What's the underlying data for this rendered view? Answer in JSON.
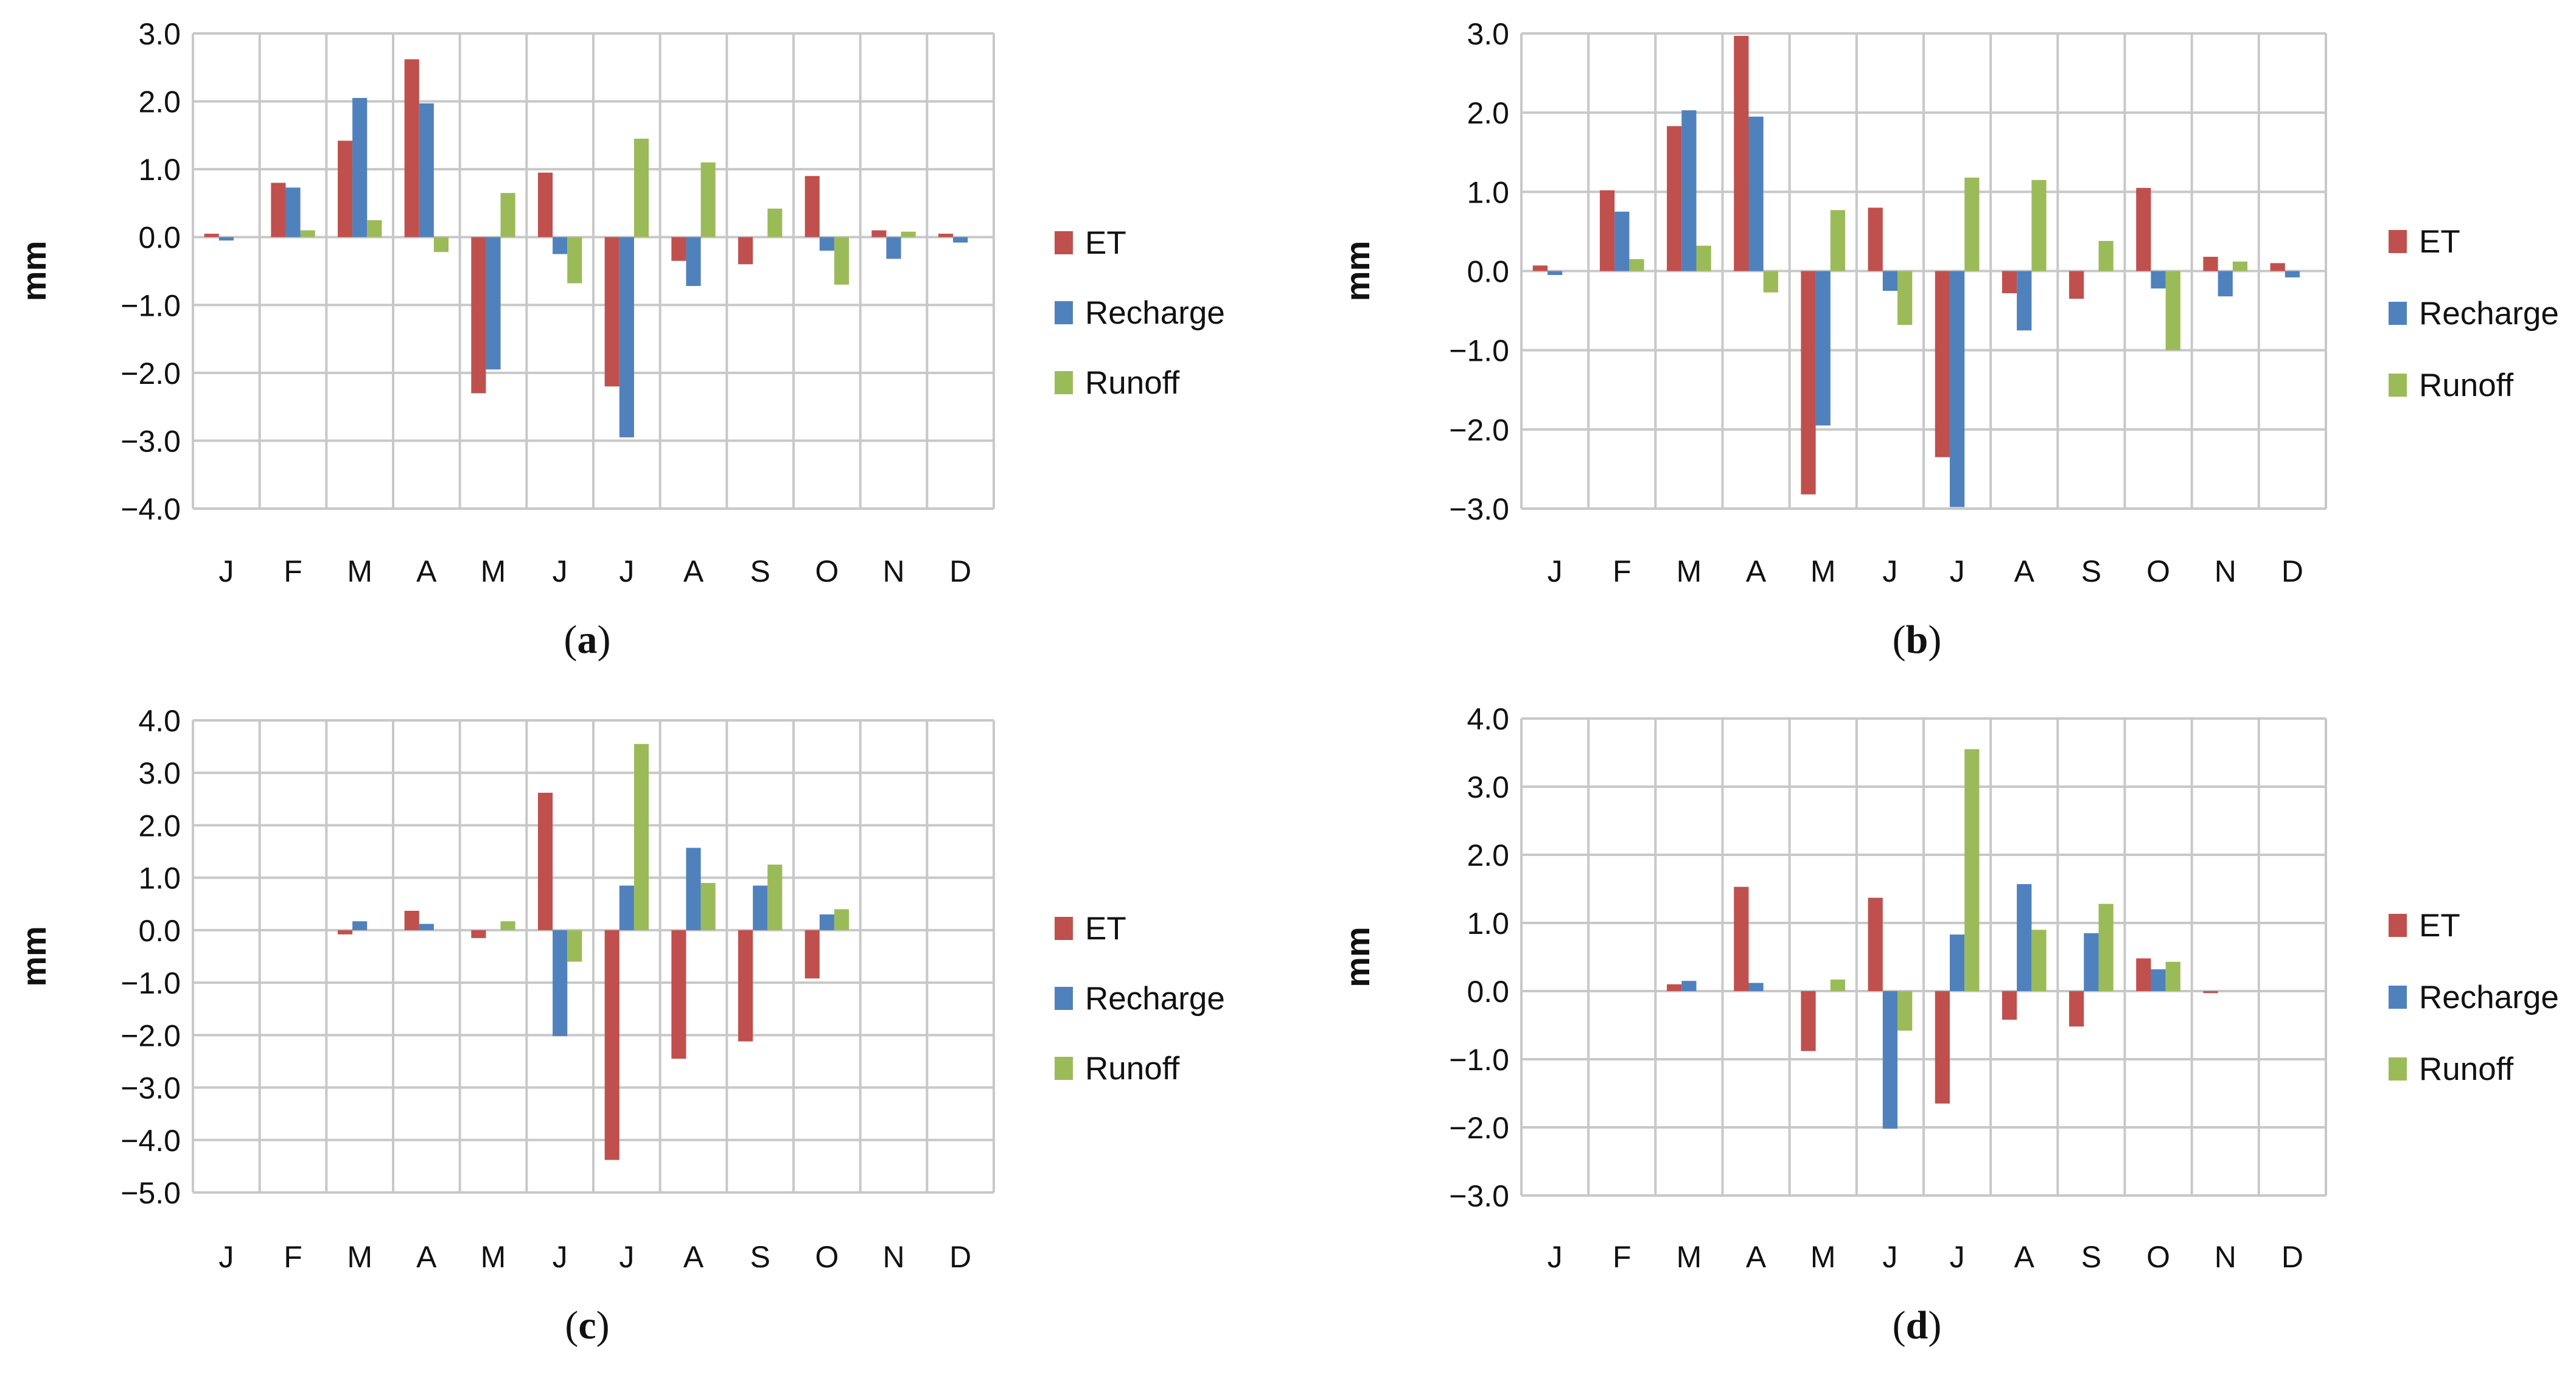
{
  "figure": {
    "panel_labels": [
      {
        "open": "(",
        "letter": "a",
        "close": ")"
      },
      {
        "open": "(",
        "letter": "b",
        "close": ")"
      },
      {
        "open": "(",
        "letter": "c",
        "close": ")"
      },
      {
        "open": "(",
        "letter": "d",
        "close": ")"
      }
    ]
  },
  "colors": {
    "ET": "#C0504D",
    "Recharge": "#4F81BD",
    "Runoff": "#9BBB59",
    "grid": "#C8C8C8"
  },
  "chart_data": [
    {
      "type": "bar",
      "title": "",
      "xlabel": "",
      "ylabel": "mm",
      "ylim": [
        -4.0,
        3.0
      ],
      "yticks": [
        "3.0",
        "2.0",
        "1.0",
        "0.0",
        "−1.0",
        "−2.0",
        "−3.0",
        "−4.0"
      ],
      "grid": true,
      "legend_position": "right",
      "categories": [
        "J",
        "F",
        "M",
        "A",
        "M",
        "J",
        "J",
        "A",
        "S",
        "O",
        "N",
        "D"
      ],
      "series": [
        {
          "name": "ET",
          "values": [
            0.05,
            0.8,
            1.42,
            2.62,
            -2.3,
            0.95,
            -2.2,
            -0.35,
            -0.4,
            0.9,
            0.1,
            0.05
          ]
        },
        {
          "name": "Recharge",
          "values": [
            -0.05,
            0.73,
            2.05,
            1.97,
            -1.95,
            -0.25,
            -2.95,
            -0.72,
            0.0,
            -0.2,
            -0.32,
            -0.08
          ]
        },
        {
          "name": "Runoff",
          "values": [
            0.0,
            0.1,
            0.25,
            -0.22,
            0.65,
            -0.68,
            1.45,
            1.1,
            0.42,
            -0.7,
            0.08,
            0.0
          ]
        }
      ]
    },
    {
      "type": "bar",
      "title": "",
      "xlabel": "",
      "ylabel": "mm",
      "ylim": [
        -3.0,
        3.0
      ],
      "yticks": [
        "3.0",
        "2.0",
        "1.0",
        "0.0",
        "−1.0",
        "−2.0",
        "−3.0"
      ],
      "grid": true,
      "legend_position": "right",
      "categories": [
        "J",
        "F",
        "M",
        "A",
        "M",
        "J",
        "J",
        "A",
        "S",
        "O",
        "N",
        "D"
      ],
      "series": [
        {
          "name": "ET",
          "values": [
            0.07,
            1.02,
            1.83,
            2.97,
            -2.82,
            0.8,
            -2.35,
            -0.28,
            -0.35,
            1.05,
            0.18,
            0.1
          ]
        },
        {
          "name": "Recharge",
          "values": [
            -0.05,
            0.75,
            2.03,
            1.95,
            -1.95,
            -0.25,
            -2.98,
            -0.75,
            0.0,
            -0.22,
            -0.32,
            -0.08
          ]
        },
        {
          "name": "Runoff",
          "values": [
            0.0,
            0.15,
            0.32,
            -0.27,
            0.77,
            -0.68,
            1.18,
            1.15,
            0.38,
            -1.0,
            0.12,
            0.0
          ]
        }
      ]
    },
    {
      "type": "bar",
      "title": "",
      "xlabel": "",
      "ylabel": "mm",
      "ylim": [
        -5.0,
        4.0
      ],
      "yticks": [
        "4.0",
        "3.0",
        "2.0",
        "1.0",
        "0.0",
        "−1.0",
        "−2.0",
        "−3.0",
        "−4.0",
        "−5.0"
      ],
      "grid": true,
      "legend_position": "right",
      "categories": [
        "J",
        "F",
        "M",
        "A",
        "M",
        "J",
        "J",
        "A",
        "S",
        "O",
        "N",
        "D"
      ],
      "series": [
        {
          "name": "ET",
          "values": [
            0.0,
            0.0,
            -0.08,
            0.37,
            -0.15,
            2.62,
            -4.38,
            -2.45,
            -2.12,
            -0.92,
            0.0,
            0.0
          ]
        },
        {
          "name": "Recharge",
          "values": [
            0.0,
            0.0,
            0.17,
            0.12,
            0.0,
            -2.02,
            0.85,
            1.57,
            0.85,
            0.3,
            0.0,
            0.0
          ]
        },
        {
          "name": "Runoff",
          "values": [
            0.0,
            0.0,
            0.0,
            0.0,
            0.17,
            -0.6,
            3.55,
            0.9,
            1.25,
            0.4,
            0.0,
            0.0
          ]
        }
      ]
    },
    {
      "type": "bar",
      "title": "",
      "xlabel": "",
      "ylabel": "mm",
      "ylim": [
        -3.0,
        4.0
      ],
      "yticks": [
        "4.0",
        "3.0",
        "2.0",
        "1.0",
        "0.0",
        "−1.0",
        "−2.0",
        "−3.0"
      ],
      "grid": true,
      "legend_position": "right",
      "categories": [
        "J",
        "F",
        "M",
        "A",
        "M",
        "J",
        "J",
        "A",
        "S",
        "O",
        "N",
        "D"
      ],
      "series": [
        {
          "name": "ET",
          "values": [
            0.0,
            0.0,
            0.1,
            1.53,
            -0.88,
            1.37,
            -1.65,
            -0.42,
            -0.52,
            0.48,
            -0.03,
            0.0
          ]
        },
        {
          "name": "Recharge",
          "values": [
            0.0,
            0.0,
            0.15,
            0.12,
            0.0,
            -2.02,
            0.83,
            1.57,
            0.85,
            0.32,
            0.0,
            0.0
          ]
        },
        {
          "name": "Runoff",
          "values": [
            0.0,
            0.0,
            0.0,
            0.0,
            0.17,
            -0.58,
            3.55,
            0.9,
            1.28,
            0.43,
            0.0,
            0.0
          ]
        }
      ]
    }
  ]
}
